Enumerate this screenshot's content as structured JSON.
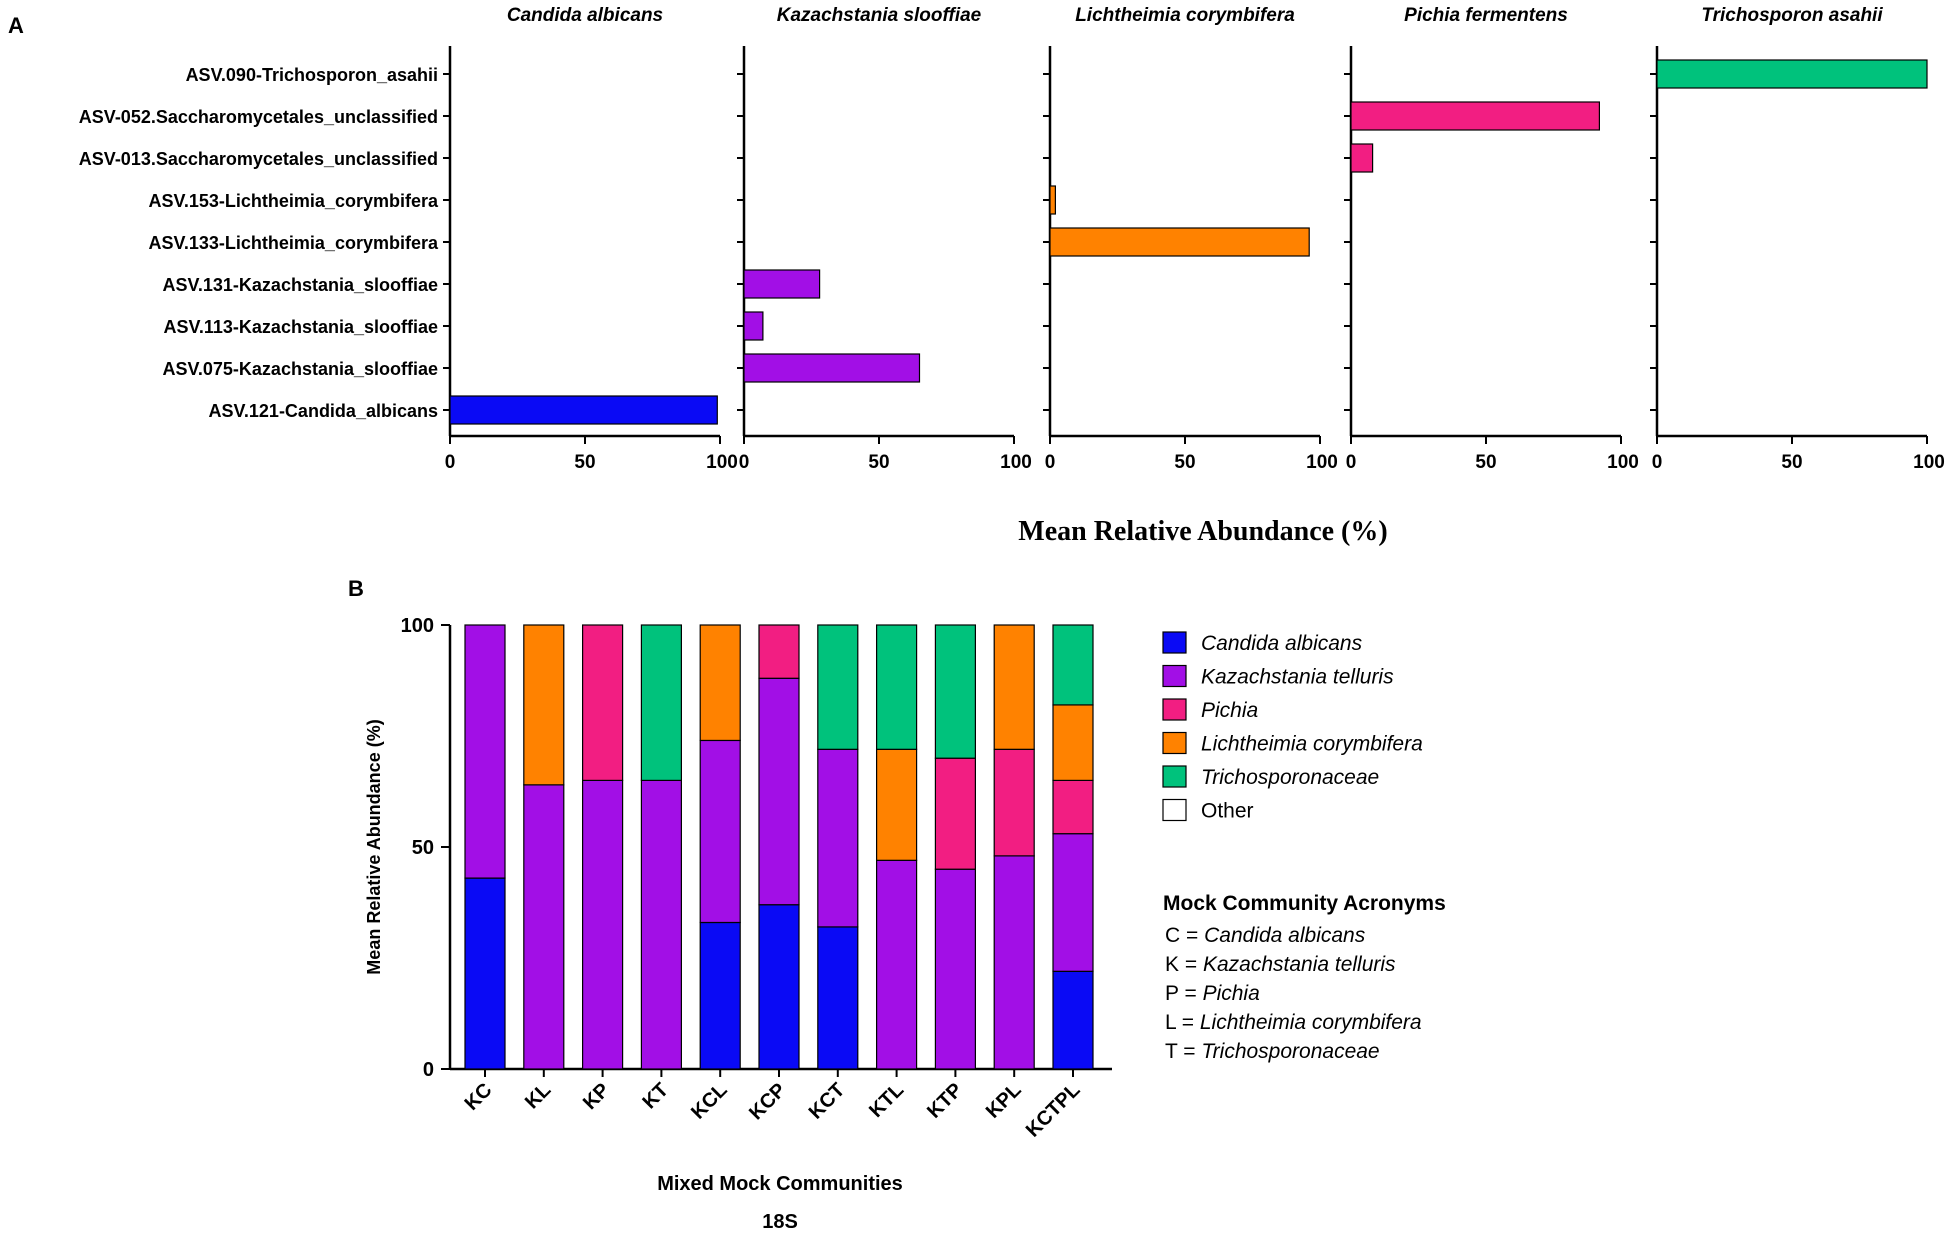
{
  "colors": {
    "candida": "#0a0af5",
    "kazachstania": "#a20fe6",
    "pichia": "#f21e82",
    "lichtheimia": "#ff8200",
    "trichosporon": "#00c27c",
    "other": "#ffffff",
    "axis": "#000000"
  },
  "chart_data": [
    {
      "panel": "A",
      "type": "bar",
      "orientation": "horizontal",
      "xlabel": "Mean Relative Abundance (%)",
      "xlim": [
        0,
        100
      ],
      "xticks": [
        "0",
        "50",
        "100"
      ],
      "categories": [
        "ASV.090-Trichosporon_asahii",
        "ASV-052.Saccharomycetales_unclassified",
        "ASV-013.Saccharomycetales_unclassified",
        "ASV.153-Lichtheimia_corymbifera",
        "ASV.133-Lichtheimia_corymbifera",
        "ASV.131-Kazachstania_slooffiae",
        "ASV.113-Kazachstania_slooffiae",
        "ASV.075-Kazachstania_slooffiae",
        "ASV.121-Candida_albicans"
      ],
      "panels": [
        {
          "title": "Candida albicans",
          "color_key": "candida",
          "values": [
            0,
            0,
            0,
            0,
            0,
            0,
            0,
            0,
            99
          ]
        },
        {
          "title": "Kazachstania slooffiae",
          "color_key": "kazachstania",
          "values": [
            0,
            0,
            0,
            0,
            0,
            28,
            7,
            65,
            0
          ]
        },
        {
          "title": "Lichtheimia corymbifera",
          "color_key": "lichtheimia",
          "values": [
            0,
            0,
            0,
            2,
            96,
            0,
            0,
            0,
            0
          ]
        },
        {
          "title": "Pichia fermentens",
          "color_key": "pichia",
          "values": [
            0,
            92,
            8,
            0,
            0,
            0,
            0,
            0,
            0
          ]
        },
        {
          "title": "Trichosporon asahii",
          "color_key": "trichosporon",
          "values": [
            100,
            0,
            0,
            0,
            0,
            0,
            0,
            0,
            0
          ]
        }
      ]
    },
    {
      "panel": "B",
      "type": "bar",
      "stacked": true,
      "title": "",
      "xlabel": "Mixed Mock Communities",
      "subtitle": "18S",
      "ylabel": "Mean Relative Abundance (%)",
      "ylim": [
        0,
        100
      ],
      "yticks": [
        "0",
        "50",
        "100"
      ],
      "categories": [
        "KC",
        "KL",
        "KP",
        "KT",
        "KCL",
        "KCP",
        "KCT",
        "KTL",
        "KTP",
        "KPL",
        "KCTPL"
      ],
      "series": [
        {
          "name": "Candida albicans",
          "color_key": "candida",
          "values": [
            43,
            0,
            0,
            0,
            33,
            37,
            32,
            0,
            0,
            0,
            22
          ]
        },
        {
          "name": "Kazachstania telluris",
          "color_key": "kazachstania",
          "values": [
            57,
            64,
            65,
            65,
            41,
            51,
            40,
            47,
            45,
            48,
            31
          ]
        },
        {
          "name": "Pichia",
          "color_key": "pichia",
          "values": [
            0,
            0,
            35,
            0,
            0,
            12,
            0,
            0,
            25,
            24,
            12
          ]
        },
        {
          "name": "Lichtheimia corymbifera",
          "color_key": "lichtheimia",
          "values": [
            0,
            36,
            0,
            0,
            26,
            0,
            0,
            25,
            0,
            28,
            17
          ]
        },
        {
          "name": "Trichosporonaceae",
          "color_key": "trichosporon",
          "values": [
            0,
            0,
            0,
            35,
            0,
            0,
            28,
            28,
            30,
            0,
            18
          ]
        },
        {
          "name": "Other",
          "color_key": "other",
          "values": [
            0,
            0,
            0,
            0,
            0,
            0,
            0,
            0,
            0,
            0,
            0
          ]
        }
      ],
      "legend": [
        {
          "label": "Candida albicans",
          "italic": true,
          "color_key": "candida"
        },
        {
          "label": "Kazachstania telluris",
          "italic": true,
          "color_key": "kazachstania"
        },
        {
          "label": "Pichia",
          "italic": true,
          "color_key": "pichia"
        },
        {
          "label": "Lichtheimia corymbifera",
          "italic": true,
          "color_key": "lichtheimia"
        },
        {
          "label": "Trichosporonaceae",
          "italic": true,
          "color_key": "trichosporon"
        },
        {
          "label": "Other",
          "italic": false,
          "color_key": "other"
        }
      ],
      "acronyms": {
        "title": "Mock Community Acronyms",
        "items": [
          {
            "key": "C",
            "sep": " = ",
            "value": "Candida albicans"
          },
          {
            "key": "K",
            "sep": " = ",
            "value": "Kazachstania telluris"
          },
          {
            "key": "P",
            "sep": " = ",
            "value": "Pichia"
          },
          {
            "key": "L",
            "sep": " = ",
            "value": "Lichtheimia corymbifera"
          },
          {
            "key": "T",
            "sep": " = ",
            "value": "Trichosporonaceae"
          }
        ]
      }
    }
  ],
  "panel_labels": {
    "a": "A",
    "b": "B"
  }
}
